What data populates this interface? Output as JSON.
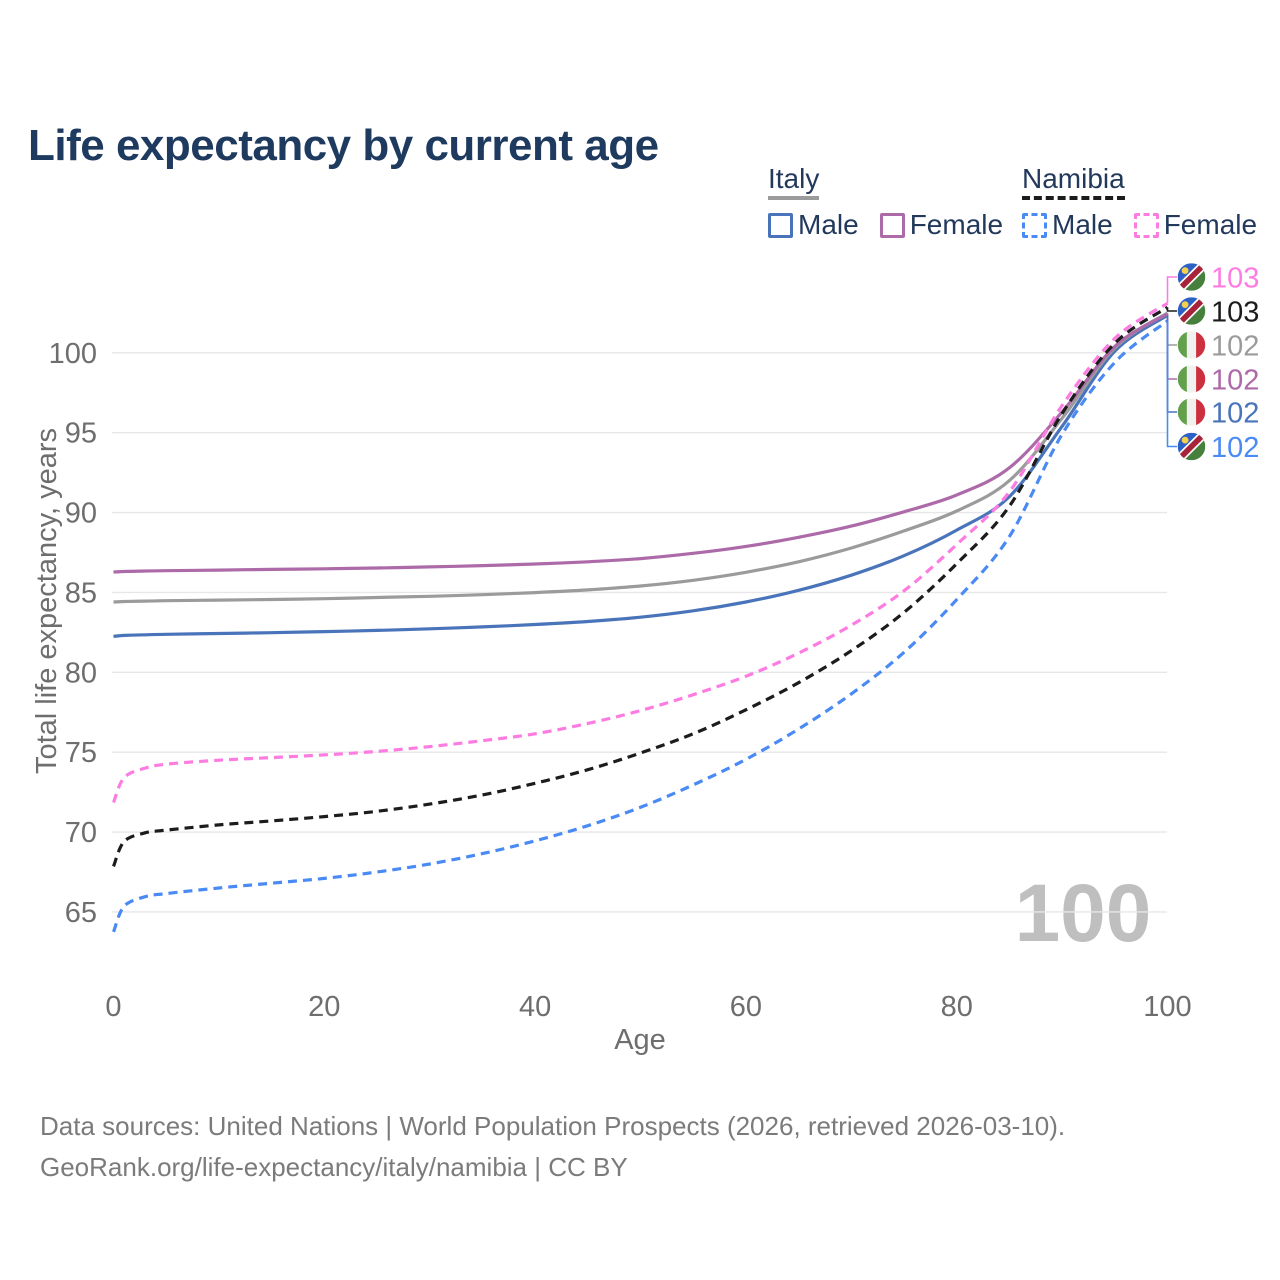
{
  "header": {
    "title": "Life expectancy by current age"
  },
  "legend": {
    "groups": [
      {
        "id": "italy",
        "label": "Italy",
        "line_style": "solid",
        "line_color": "#9b9b9b",
        "items": [
          {
            "id": "italy-male",
            "label": "Male",
            "color": "#4a74ba",
            "dashed": false
          },
          {
            "id": "italy-female",
            "label": "Female",
            "color": "#ad6aa8",
            "dashed": false
          }
        ]
      },
      {
        "id": "namibia",
        "label": "Namibia",
        "line_style": "dashed",
        "line_color": "#1c1c1c",
        "items": [
          {
            "id": "namibia-male",
            "label": "Male",
            "color": "#4a8af4",
            "dashed": true
          },
          {
            "id": "namibia-female",
            "label": "Female",
            "color": "#fd7ce1",
            "dashed": true
          }
        ]
      }
    ]
  },
  "chart_data": {
    "type": "line",
    "title": "Life expectancy by current age",
    "xlabel": "Age",
    "ylabel": "Total life expectancy, years",
    "xlim": [
      0,
      100
    ],
    "ylim": [
      63,
      104
    ],
    "xticks": [
      0,
      20,
      40,
      60,
      80,
      100
    ],
    "yticks": [
      65,
      70,
      75,
      80,
      85,
      90,
      95,
      100
    ],
    "grid": "horizontal-only",
    "gridline_color": "#e7e7e7",
    "tick_label_color": "#6e6e6e",
    "watermark": "100",
    "watermark_color": "#bfbfbf",
    "legend_position": "top-right",
    "ages": [
      0,
      1,
      3,
      5,
      10,
      15,
      20,
      25,
      30,
      35,
      40,
      45,
      50,
      55,
      60,
      65,
      70,
      75,
      80,
      85,
      90,
      95,
      100
    ],
    "series": [
      {
        "id": "italy-male",
        "name": "Italy Male",
        "country": "Italy",
        "sex": "Male",
        "flag": "italy",
        "color": "#4a74ba",
        "dashed": false,
        "end_label": "102",
        "values": [
          82.25,
          82.31,
          82.35,
          82.38,
          82.43,
          82.48,
          82.55,
          82.62,
          82.72,
          82.84,
          82.99,
          83.18,
          83.45,
          83.85,
          84.4,
          85.13,
          86.08,
          87.3,
          88.9,
          91.0,
          95.4,
          100.1,
          102.35
        ]
      },
      {
        "id": "italy-both",
        "name": "Italy",
        "country": "Italy",
        "sex": "Both",
        "flag": "italy",
        "color": "#9b9b9b",
        "dashed": false,
        "end_label": "102",
        "values": [
          84.4,
          84.43,
          84.46,
          84.48,
          84.52,
          84.56,
          84.61,
          84.68,
          84.76,
          84.86,
          84.99,
          85.16,
          85.4,
          85.76,
          86.26,
          86.92,
          87.78,
          88.85,
          90.1,
          92.0,
          95.9,
          100.3,
          102.5
        ]
      },
      {
        "id": "italy-female",
        "name": "Italy Female",
        "country": "Italy",
        "sex": "Female",
        "flag": "italy",
        "color": "#ad6aa8",
        "dashed": false,
        "end_label": "102",
        "values": [
          86.28,
          86.31,
          86.34,
          86.36,
          86.4,
          86.44,
          86.48,
          86.53,
          86.6,
          86.68,
          86.78,
          86.92,
          87.12,
          87.45,
          87.88,
          88.45,
          89.15,
          90.05,
          91.1,
          92.8,
          96.3,
          100.4,
          102.45
        ]
      },
      {
        "id": "namibia-male",
        "name": "Namibia Male",
        "country": "Namibia",
        "sex": "Male",
        "flag": "namibia",
        "color": "#4a8af4",
        "dashed": true,
        "end_label": "102",
        "values": [
          63.75,
          65.35,
          65.95,
          66.15,
          66.5,
          66.8,
          67.1,
          67.5,
          68.0,
          68.65,
          69.45,
          70.4,
          71.55,
          72.95,
          74.55,
          76.45,
          78.65,
          81.25,
          84.55,
          88.5,
          94.9,
          99.4,
          102.0
        ]
      },
      {
        "id": "namibia-both",
        "name": "Namibia",
        "country": "Namibia",
        "sex": "Both",
        "flag": "namibia",
        "color": "#1c1c1c",
        "dashed": true,
        "end_label": "103",
        "values": [
          67.85,
          69.4,
          69.95,
          70.12,
          70.45,
          70.7,
          70.97,
          71.3,
          71.75,
          72.32,
          73.05,
          73.9,
          74.95,
          76.15,
          77.65,
          79.35,
          81.35,
          83.75,
          86.8,
          90.4,
          96.2,
          100.6,
          102.85
        ]
      },
      {
        "id": "namibia-female",
        "name": "Namibia Female",
        "country": "Namibia",
        "sex": "Female",
        "flag": "namibia",
        "color": "#fd7ce1",
        "dashed": true,
        "end_label": "103",
        "values": [
          71.85,
          73.4,
          74.0,
          74.25,
          74.5,
          74.66,
          74.83,
          75.05,
          75.35,
          75.72,
          76.15,
          76.8,
          77.6,
          78.6,
          79.75,
          81.2,
          82.95,
          85.1,
          88.0,
          91.3,
          96.7,
          100.9,
          103.1
        ]
      }
    ],
    "end_labels_top_to_bottom": [
      {
        "value": "103",
        "series": "Namibia Female",
        "color": "#fd7ce1",
        "flag": "namibia"
      },
      {
        "value": "103",
        "series": "Namibia",
        "color": "#1c1c1c",
        "flag": "namibia"
      },
      {
        "value": "102",
        "series": "Italy",
        "color": "#9b9b9b",
        "flag": "italy"
      },
      {
        "value": "102",
        "series": "Italy Female",
        "color": "#ad6aa8",
        "flag": "italy"
      },
      {
        "value": "102",
        "series": "Italy Male",
        "color": "#4a74ba",
        "flag": "italy"
      },
      {
        "value": "102",
        "series": "Namibia Male",
        "color": "#4a8af4",
        "flag": "namibia"
      }
    ]
  },
  "footer": {
    "line1": "Data sources: United Nations | World Population Prospects (2026, retrieved 2026-03-10).",
    "line2": "GeoRank.org/life-expectancy/italy/namibia | CC BY"
  }
}
